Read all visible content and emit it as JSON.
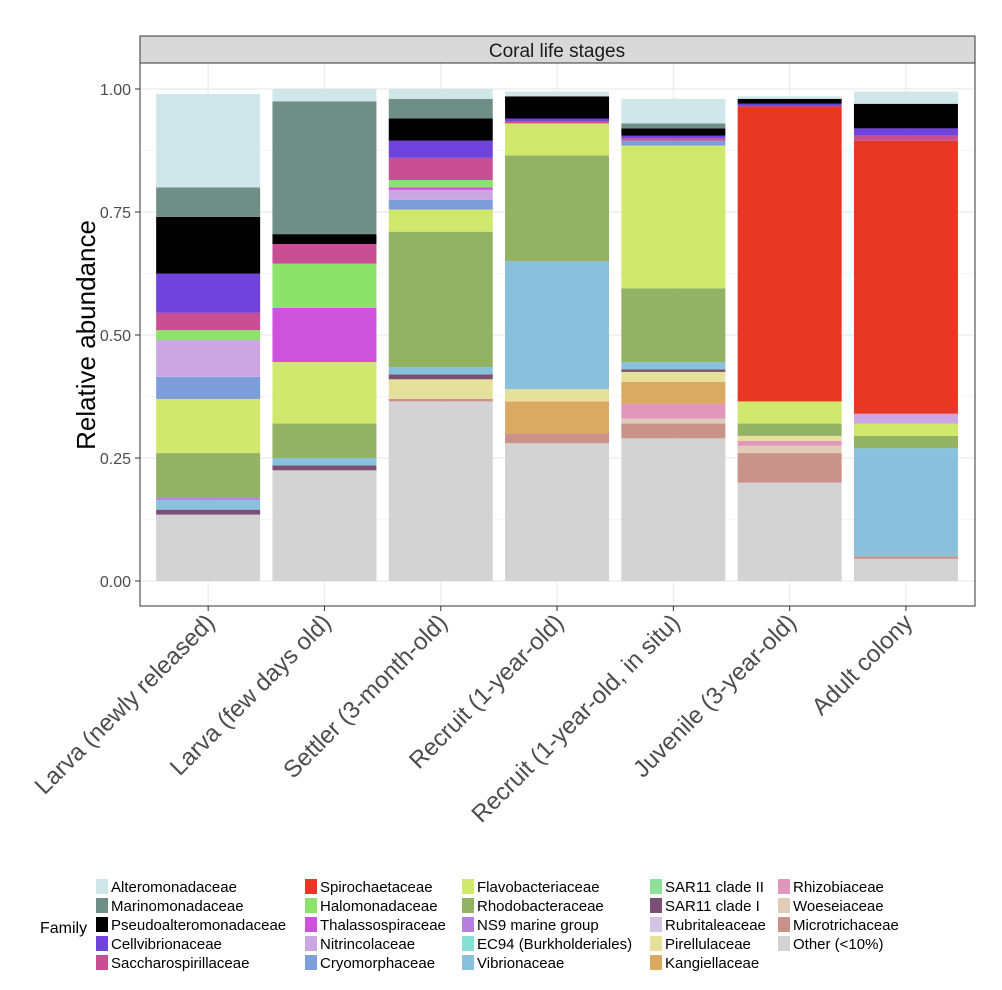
{
  "chart_data": {
    "type": "bar",
    "stacked": true,
    "title": "Coral life stages",
    "xlabel": "",
    "ylabel": "Relative abundance",
    "ylim": [
      0,
      1.05
    ],
    "yticks": [
      "0.00",
      "0.25",
      "0.50",
      "0.75",
      "1.00"
    ],
    "ytick_values": [
      0,
      0.25,
      0.5,
      0.75,
      1.0
    ],
    "grid": true,
    "legend_position": "bottom",
    "legend_title": "Family",
    "categories": [
      "Larva (newly released)",
      "Larva (few days old)",
      "Settler (3-month-old)",
      "Recruit (1-year-old)",
      "Recruit (1-year-old, in situ)",
      "Juvenile (3-year-old)",
      "Adult colony"
    ],
    "series": [
      {
        "name": "Other (<10%)",
        "color": "#d3d3d3",
        "values": [
          0.135,
          0.225,
          0.365,
          0.28,
          0.29,
          0.2,
          0.045
        ]
      },
      {
        "name": "Microtrichaceae",
        "color": "#c9938a",
        "values": [
          0.0,
          0.0,
          0.005,
          0.02,
          0.03,
          0.06,
          0.005
        ]
      },
      {
        "name": "Woeseiaceae",
        "color": "#e0cdb9",
        "values": [
          0.0,
          0.0,
          0.0,
          0.0,
          0.01,
          0.015,
          0.0
        ]
      },
      {
        "name": "Rhizobiaceae",
        "color": "#e196bb",
        "values": [
          0.0,
          0.0,
          0.0,
          0.0,
          0.03,
          0.01,
          0.0
        ]
      },
      {
        "name": "Kangiellaceae",
        "color": "#dbaa62",
        "values": [
          0.0,
          0.0,
          0.0,
          0.065,
          0.045,
          0.0,
          0.0
        ]
      },
      {
        "name": "Pirellulaceae",
        "color": "#e5e09a",
        "values": [
          0.0,
          0.0,
          0.04,
          0.025,
          0.02,
          0.01,
          0.0
        ]
      },
      {
        "name": "Rubritaleaceae",
        "color": "#d5c3e5",
        "values": [
          0.0,
          0.0,
          0.0,
          0.0,
          0.0,
          0.0,
          0.0
        ]
      },
      {
        "name": "SAR11 clade I",
        "color": "#7b5073",
        "values": [
          0.01,
          0.01,
          0.01,
          0.0,
          0.005,
          0.0,
          0.0
        ]
      },
      {
        "name": "SAR11 clade II",
        "color": "#8ee09b",
        "values": [
          0.0,
          0.0,
          0.0,
          0.0,
          0.0,
          0.0,
          0.0
        ]
      },
      {
        "name": "Vibrionaceae",
        "color": "#89c1dd",
        "values": [
          0.02,
          0.015,
          0.015,
          0.26,
          0.015,
          0.0,
          0.22
        ]
      },
      {
        "name": "EC94 (Burkholderiales)",
        "color": "#86e0d6",
        "values": [
          0.0,
          0.0,
          0.0,
          0.0,
          0.0,
          0.0,
          0.0
        ]
      },
      {
        "name": "NS9 marine group",
        "color": "#b580dc",
        "values": [
          0.005,
          0.0,
          0.0,
          0.0,
          0.0,
          0.0,
          0.0
        ]
      },
      {
        "name": "Rhodobacteraceae",
        "color": "#93b263",
        "values": [
          0.09,
          0.07,
          0.275,
          0.215,
          0.15,
          0.025,
          0.025
        ]
      },
      {
        "name": "Flavobacteriaceae",
        "color": "#d0e86c",
        "values": [
          0.11,
          0.125,
          0.045,
          0.065,
          0.29,
          0.045,
          0.025
        ]
      },
      {
        "name": "Cryomorphaceae",
        "color": "#7d9ddb",
        "values": [
          0.045,
          0.0,
          0.02,
          0.0,
          0.01,
          0.0,
          0.0
        ]
      },
      {
        "name": "Nitrincolaceae",
        "color": "#cca6e3",
        "values": [
          0.075,
          0.0,
          0.02,
          0.0,
          0.0,
          0.0,
          0.02
        ]
      },
      {
        "name": "Thalassospiraceae",
        "color": "#cd52dc",
        "values": [
          0.0,
          0.11,
          0.005,
          0.0,
          0.0,
          0.0,
          0.0
        ]
      },
      {
        "name": "Halomonadaceae",
        "color": "#8ce26b",
        "values": [
          0.02,
          0.09,
          0.015,
          0.0,
          0.0,
          0.0,
          0.0
        ]
      },
      {
        "name": "Spirochaetaceae",
        "color": "#e83725",
        "values": [
          0.0,
          0.0,
          0.0,
          0.0,
          0.0,
          0.6,
          0.555
        ]
      },
      {
        "name": "Saccharospirillaceae",
        "color": "#c94f95",
        "values": [
          0.035,
          0.04,
          0.045,
          0.005,
          0.005,
          0.0,
          0.01
        ]
      },
      {
        "name": "Cellvibrionaceae",
        "color": "#7043dd",
        "values": [
          0.08,
          0.0,
          0.035,
          0.005,
          0.005,
          0.005,
          0.015
        ]
      },
      {
        "name": "Pseudoalteromonadaceae",
        "color": "#000000",
        "values": [
          0.115,
          0.02,
          0.045,
          0.045,
          0.015,
          0.01,
          0.05
        ]
      },
      {
        "name": "Marinomonadaceae",
        "color": "#6e8e86",
        "values": [
          0.06,
          0.27,
          0.04,
          0.0,
          0.01,
          0.0,
          0.0
        ]
      },
      {
        "name": "Alteromonadaceae",
        "color": "#cfe7e8",
        "values": [
          0.19,
          0.025,
          0.02,
          0.01,
          0.05,
          0.005,
          0.025
        ]
      }
    ],
    "legend_columns": [
      [
        "Alteromonadaceae",
        "Marinomonadaceae",
        "Pseudoalteromonadaceae",
        "Cellvibrionaceae",
        "Saccharospirillaceae"
      ],
      [
        "Spirochaetaceae",
        "Halomonadaceae",
        "Thalassospiraceae",
        "Nitrincolaceae",
        "Cryomorphaceae"
      ],
      [
        "Flavobacteriaceae",
        "Rhodobacteraceae",
        "NS9 marine group",
        "EC94 (Burkholderiales)",
        "Vibrionaceae"
      ],
      [
        "SAR11 clade II",
        "SAR11 clade I",
        "Rubritaleaceae",
        "Pirellulaceae",
        "Kangiellaceae"
      ],
      [
        "Rhizobiaceae",
        "Woeseiaceae",
        "Microtrichaceae",
        "Other (<10%)"
      ]
    ]
  }
}
